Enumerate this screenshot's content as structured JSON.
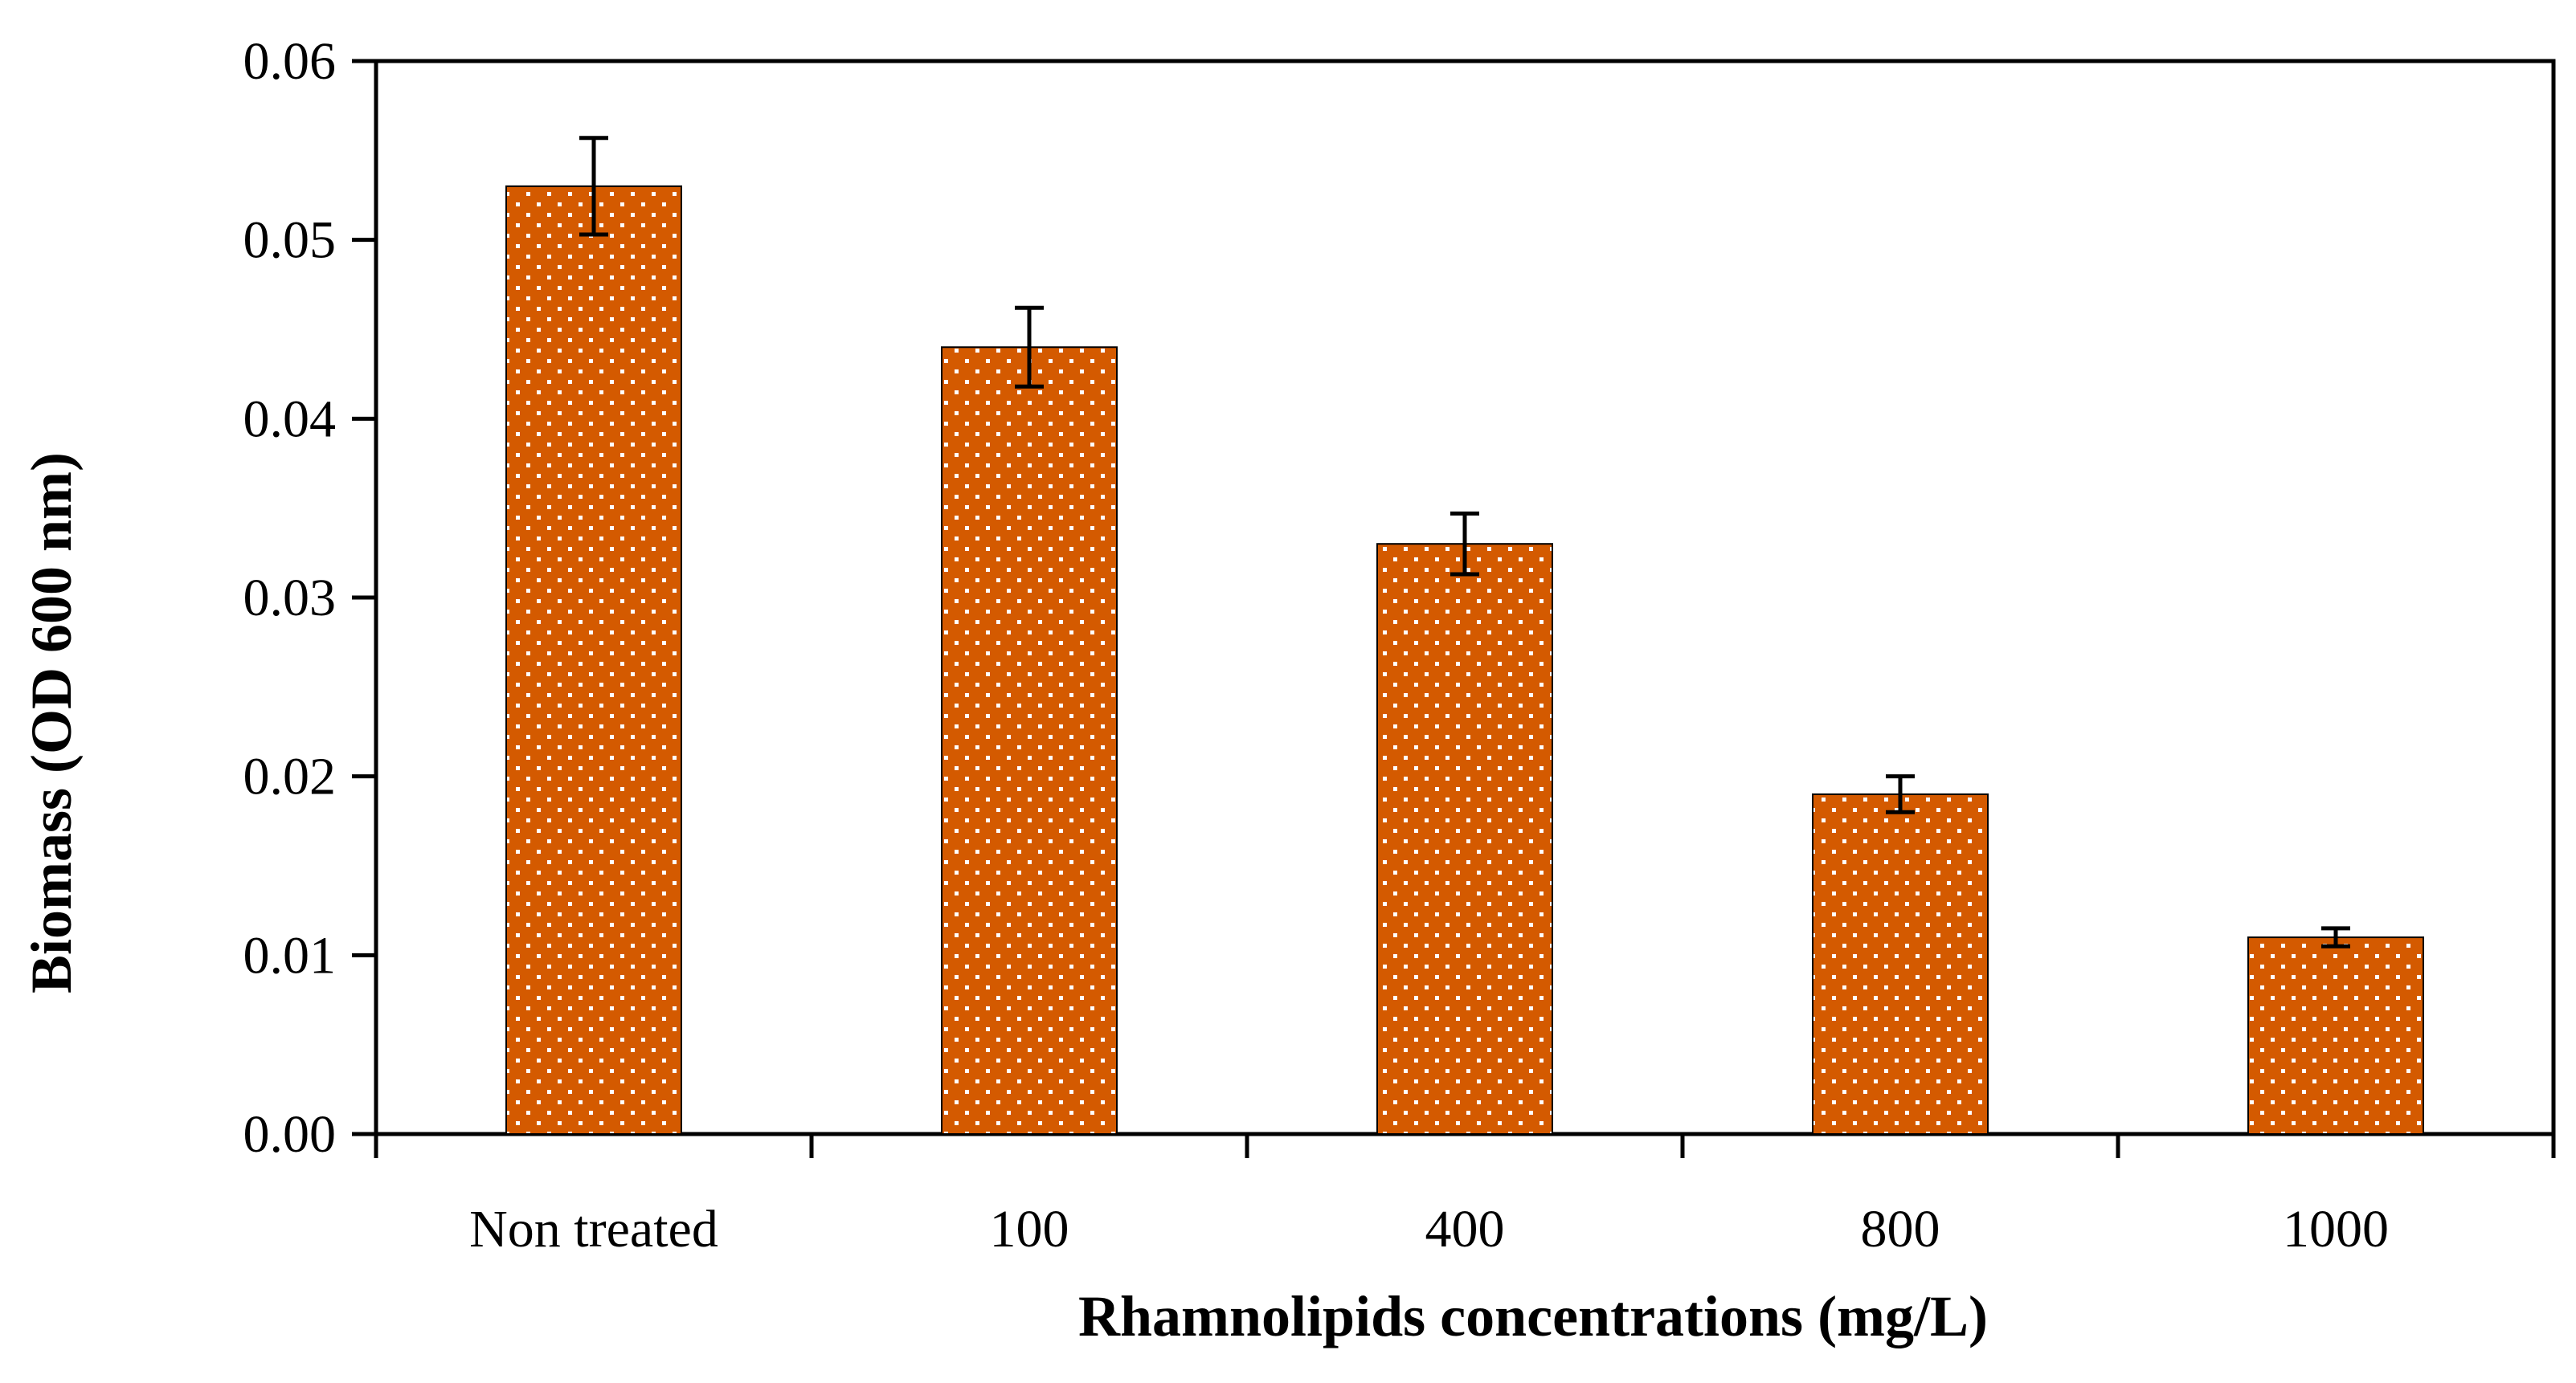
{
  "chart_data": {
    "type": "bar",
    "title": "",
    "xlabel": "Rhamnolipids concentrations  (mg/L)",
    "ylabel": "Biomass (OD 600 nm)",
    "categories": [
      "Non treated",
      "100",
      "400",
      "800",
      "1000"
    ],
    "values": [
      0.053,
      0.044,
      0.033,
      0.019,
      0.011
    ],
    "error": [
      0.0027,
      0.0022,
      0.0017,
      0.001,
      0.0005
    ],
    "ylim": [
      0,
      0.06
    ],
    "yticks": [
      "0.00",
      "0.01",
      "0.02",
      "0.03",
      "0.04",
      "0.05",
      "0.06"
    ],
    "grid": false,
    "legend": "none",
    "colors": {
      "bar": "#d45a00",
      "dot": "#ffffff",
      "axis": "#000000"
    }
  }
}
